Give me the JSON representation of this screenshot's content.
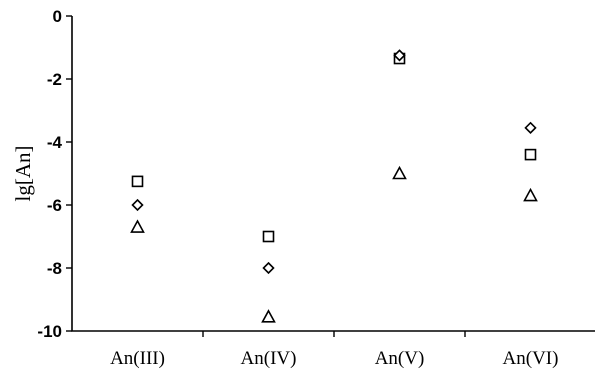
{
  "chart_data": {
    "type": "scatter",
    "title": "",
    "xlabel": "",
    "ylabel": "lg[An]",
    "categories": [
      "An(III)",
      "An(IV)",
      "An(V)",
      "An(VI)"
    ],
    "ylim": [
      -10,
      0
    ],
    "yticks": [
      "0",
      "-2",
      "-4",
      "-6",
      "-8",
      "-10"
    ],
    "grid": false,
    "series": [
      {
        "marker": "square",
        "values": [
          -5.25,
          -7.0,
          -1.35,
          -4.4
        ]
      },
      {
        "marker": "diamond",
        "values": [
          -6.0,
          -8.0,
          -1.25,
          -3.55
        ]
      },
      {
        "marker": "triangle",
        "values": [
          -6.7,
          -9.55,
          -5.0,
          -5.7
        ]
      }
    ]
  }
}
